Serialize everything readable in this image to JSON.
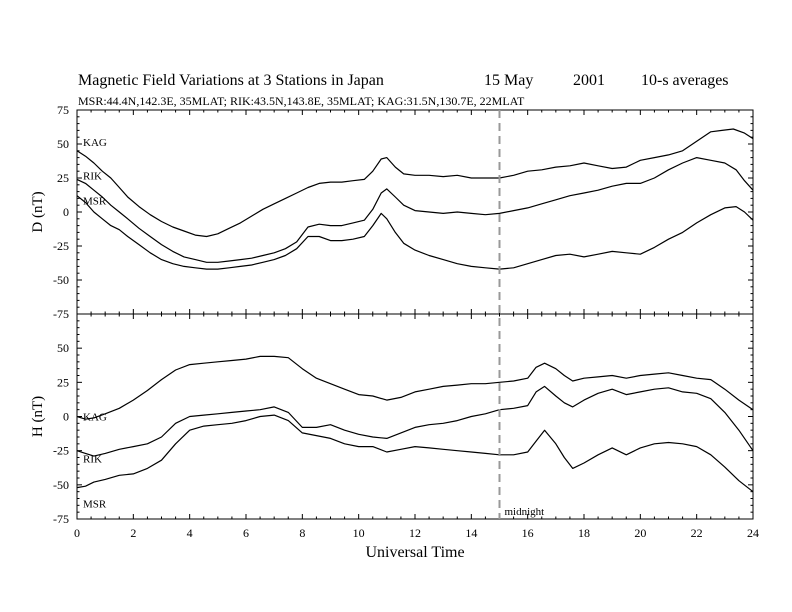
{
  "header": {
    "title": "Magnetic Field Variations at 3 Stations in Japan",
    "date": "15 May",
    "year": "2001",
    "averaging": "10-s averages",
    "subtitle": "MSR:44.4N,142.3E, 35MLAT;  RIK:43.5N,143.8E, 35MLAT;  KAG:31.5N,130.7E, 22MLAT"
  },
  "chart_data": [
    {
      "type": "line",
      "panel": "top",
      "ylabel": "D (nT)",
      "ylim": [
        -75,
        75
      ],
      "yticks": [
        75,
        50,
        25,
        0,
        -25,
        -50,
        -75
      ],
      "xlim": [
        0,
        24
      ],
      "series": [
        {
          "name": "KAG",
          "x": [
            0,
            0.3,
            0.6,
            0.9,
            1.2,
            1.5,
            1.8,
            2.2,
            2.6,
            3.0,
            3.4,
            3.8,
            4.2,
            4.6,
            5.0,
            5.4,
            5.8,
            6.2,
            6.6,
            7.0,
            7.4,
            7.8,
            8.2,
            8.6,
            9.0,
            9.4,
            9.8,
            10.2,
            10.5,
            10.8,
            11.0,
            11.3,
            11.6,
            12.0,
            12.5,
            13.0,
            13.5,
            14.0,
            14.5,
            15.0,
            15.5,
            16.0,
            16.5,
            17.0,
            17.5,
            18.0,
            18.5,
            19.0,
            19.5,
            20.0,
            20.5,
            21.0,
            21.5,
            22.0,
            22.5,
            22.9,
            23.3,
            23.7,
            24.0
          ],
          "y": [
            45,
            41,
            36,
            30,
            25,
            18,
            11,
            4,
            -2,
            -7,
            -11,
            -14,
            -17,
            -18,
            -16,
            -12,
            -8,
            -3,
            2,
            6,
            10,
            14,
            18,
            21,
            22,
            22,
            23,
            24,
            30,
            39,
            40,
            33,
            28,
            27,
            27,
            26,
            27,
            25,
            25,
            25,
            27,
            30,
            31,
            33,
            34,
            36,
            34,
            32,
            33,
            38,
            40,
            42,
            45,
            52,
            59,
            60,
            61,
            58,
            54
          ]
        },
        {
          "name": "RIK",
          "x": [
            0,
            0.3,
            0.6,
            0.9,
            1.2,
            1.5,
            1.8,
            2.2,
            2.6,
            3.0,
            3.4,
            3.8,
            4.2,
            4.6,
            5.0,
            5.4,
            5.8,
            6.2,
            6.6,
            7.0,
            7.4,
            7.8,
            8.2,
            8.6,
            9.0,
            9.4,
            9.8,
            10.2,
            10.5,
            10.8,
            11.0,
            11.3,
            11.6,
            12.0,
            12.5,
            13.0,
            13.5,
            14.0,
            14.5,
            15.0,
            15.5,
            16.0,
            16.5,
            17.0,
            17.5,
            18.0,
            18.5,
            19.0,
            19.5,
            20.0,
            20.5,
            21.0,
            21.5,
            22.0,
            22.5,
            23.0,
            23.4,
            23.7,
            24.0
          ],
          "y": [
            24,
            21,
            16,
            11,
            5,
            0,
            -5,
            -12,
            -18,
            -24,
            -29,
            -33,
            -35,
            -37,
            -37,
            -36,
            -35,
            -34,
            -32,
            -30,
            -27,
            -22,
            -11,
            -9,
            -10,
            -10,
            -8,
            -6,
            2,
            14,
            17,
            11,
            5,
            1,
            0,
            -1,
            0,
            -1,
            -2,
            -1,
            1,
            3,
            6,
            9,
            12,
            14,
            16,
            19,
            21,
            21,
            25,
            31,
            36,
            40,
            38,
            36,
            31,
            23,
            16
          ]
        },
        {
          "name": "MSR",
          "x": [
            0,
            0.3,
            0.6,
            0.9,
            1.2,
            1.5,
            1.8,
            2.2,
            2.6,
            3.0,
            3.4,
            3.8,
            4.2,
            4.6,
            5.0,
            5.4,
            5.8,
            6.2,
            6.6,
            7.0,
            7.4,
            7.8,
            8.2,
            8.6,
            9.0,
            9.4,
            9.8,
            10.2,
            10.5,
            10.8,
            11.0,
            11.3,
            11.6,
            12.0,
            12.5,
            13.0,
            13.5,
            14.0,
            14.5,
            15.0,
            15.5,
            16.0,
            16.5,
            17.0,
            17.5,
            18.0,
            18.5,
            19.0,
            19.5,
            20.0,
            20.5,
            21.0,
            21.5,
            22.0,
            22.5,
            23.0,
            23.4,
            23.7,
            24.0
          ],
          "y": [
            12,
            7,
            0,
            -5,
            -10,
            -13,
            -18,
            -24,
            -30,
            -35,
            -38,
            -40,
            -41,
            -42,
            -42,
            -41,
            -40,
            -39,
            -37,
            -35,
            -32,
            -27,
            -18,
            -18,
            -21,
            -21,
            -20,
            -18,
            -10,
            -1,
            -5,
            -15,
            -23,
            -28,
            -32,
            -35,
            -38,
            -40,
            -41,
            -42,
            -41,
            -38,
            -35,
            -32,
            -31,
            -33,
            -31,
            -29,
            -30,
            -31,
            -26,
            -20,
            -15,
            -8,
            -2,
            3,
            4,
            0,
            -6
          ]
        }
      ]
    },
    {
      "type": "line",
      "panel": "bottom",
      "ylabel": "H (nT)",
      "xlabel": "Universal Time",
      "ylim": [
        -75,
        75
      ],
      "yticks": [
        50,
        25,
        0,
        -25,
        -50,
        -75
      ],
      "xlim": [
        0,
        24
      ],
      "xticks": [
        0,
        2,
        4,
        6,
        8,
        10,
        12,
        14,
        16,
        18,
        20,
        22,
        24
      ],
      "series": [
        {
          "name": "KAG",
          "x": [
            0,
            0.3,
            0.6,
            1.0,
            1.5,
            2.0,
            2.5,
            3.0,
            3.5,
            4.0,
            4.5,
            5.0,
            5.5,
            6.0,
            6.5,
            7.0,
            7.5,
            8.0,
            8.5,
            9.0,
            9.5,
            10.0,
            10.5,
            11.0,
            11.5,
            12.0,
            12.5,
            13.0,
            13.5,
            14.0,
            14.5,
            15.0,
            15.5,
            16.0,
            16.3,
            16.6,
            17.0,
            17.3,
            17.6,
            18.0,
            18.5,
            19.0,
            19.5,
            20.0,
            20.5,
            21.0,
            21.5,
            22.0,
            22.5,
            23.0,
            23.5,
            24.0
          ],
          "y": [
            0,
            -2,
            -1,
            2,
            6,
            12,
            19,
            27,
            34,
            38,
            39,
            40,
            41,
            42,
            44,
            44,
            43,
            35,
            28,
            24,
            20,
            16,
            15,
            12,
            14,
            18,
            20,
            22,
            23,
            24,
            24,
            25,
            26,
            28,
            36,
            39,
            35,
            30,
            26,
            28,
            29,
            30,
            28,
            30,
            31,
            32,
            30,
            28,
            27,
            20,
            12,
            5
          ]
        },
        {
          "name": "RIK",
          "x": [
            0,
            0.3,
            0.6,
            1.0,
            1.5,
            2.0,
            2.5,
            3.0,
            3.5,
            4.0,
            4.5,
            5.0,
            5.5,
            6.0,
            6.5,
            7.0,
            7.5,
            8.0,
            8.5,
            9.0,
            9.5,
            10.0,
            10.5,
            11.0,
            11.5,
            12.0,
            12.5,
            13.0,
            13.5,
            14.0,
            14.5,
            15.0,
            15.5,
            16.0,
            16.3,
            16.6,
            17.0,
            17.3,
            17.6,
            18.0,
            18.5,
            19.0,
            19.5,
            20.0,
            20.5,
            21.0,
            21.5,
            22.0,
            22.5,
            23.0,
            23.5,
            24.0
          ],
          "y": [
            -25,
            -27,
            -29,
            -27,
            -24,
            -22,
            -20,
            -15,
            -5,
            0,
            1,
            2,
            3,
            4,
            5,
            7,
            3,
            -8,
            -8,
            -6,
            -10,
            -13,
            -15,
            -16,
            -12,
            -8,
            -6,
            -5,
            -3,
            0,
            2,
            5,
            6,
            8,
            18,
            22,
            15,
            10,
            7,
            12,
            17,
            20,
            16,
            18,
            20,
            21,
            18,
            17,
            13,
            3,
            -10,
            -25
          ]
        },
        {
          "name": "MSR",
          "x": [
            0,
            0.3,
            0.6,
            1.0,
            1.5,
            2.0,
            2.5,
            3.0,
            3.5,
            4.0,
            4.5,
            5.0,
            5.5,
            6.0,
            6.5,
            7.0,
            7.5,
            8.0,
            8.5,
            9.0,
            9.5,
            10.0,
            10.5,
            11.0,
            11.5,
            12.0,
            12.5,
            13.0,
            13.5,
            14.0,
            14.5,
            15.0,
            15.5,
            16.0,
            16.3,
            16.6,
            17.0,
            17.3,
            17.6,
            18.0,
            18.5,
            19.0,
            19.5,
            20.0,
            20.5,
            21.0,
            21.5,
            22.0,
            22.5,
            23.0,
            23.5,
            24.0
          ],
          "y": [
            -52,
            -51,
            -48,
            -46,
            -43,
            -42,
            -38,
            -32,
            -20,
            -10,
            -7,
            -6,
            -5,
            -3,
            0,
            1,
            -3,
            -12,
            -14,
            -16,
            -20,
            -22,
            -22,
            -26,
            -24,
            -22,
            -23,
            -24,
            -25,
            -26,
            -27,
            -28,
            -28,
            -26,
            -18,
            -10,
            -20,
            -30,
            -38,
            -34,
            -28,
            -23,
            -28,
            -23,
            -20,
            -19,
            -20,
            -22,
            -28,
            -37,
            -47,
            -55
          ]
        }
      ]
    }
  ],
  "annotations": {
    "marker_ut": 15,
    "marker_label": "midnight"
  }
}
